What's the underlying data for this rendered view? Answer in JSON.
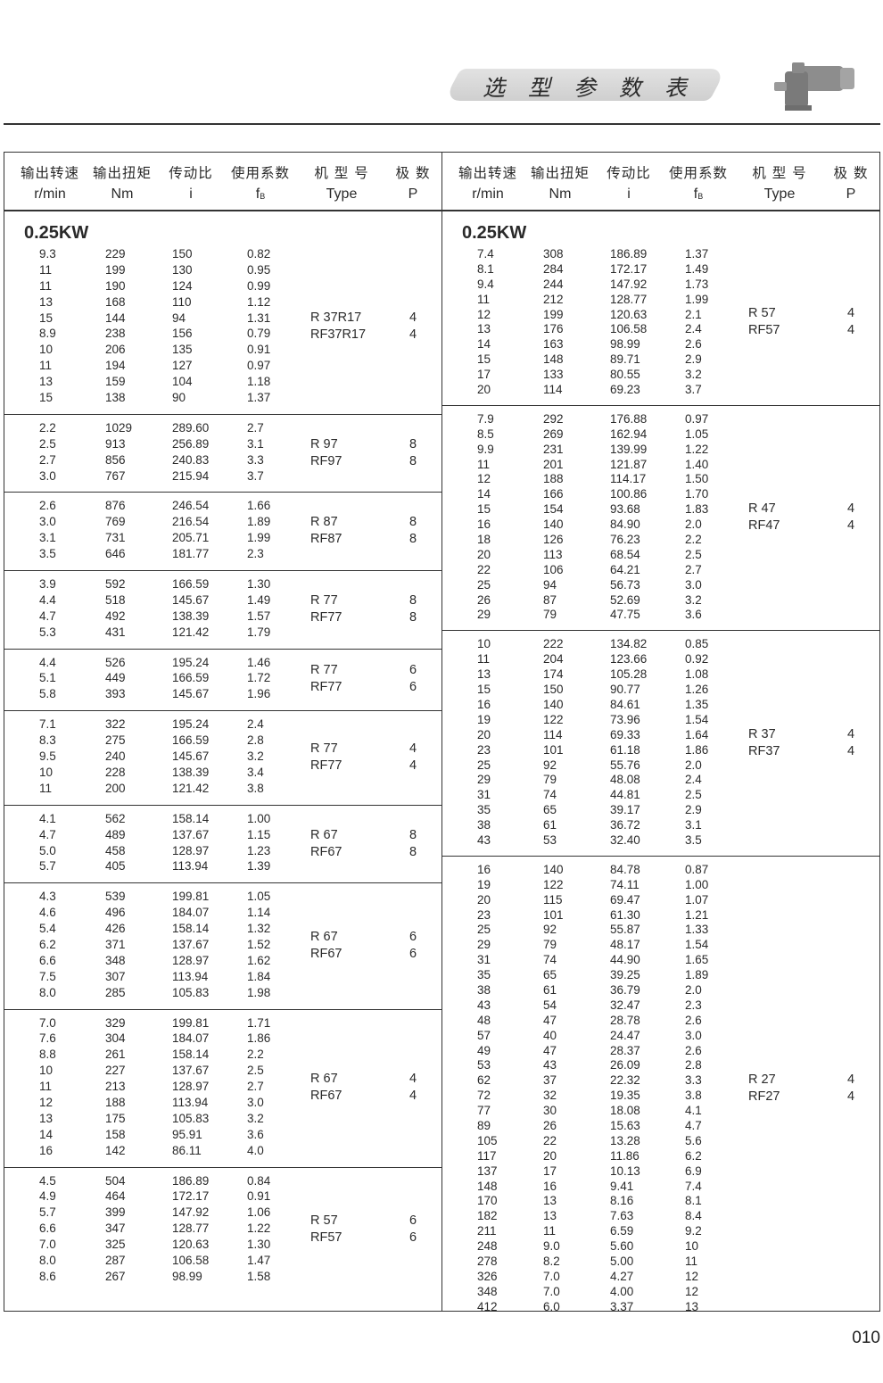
{
  "header": {
    "title": "选 型 参 数 表",
    "page_number": "010"
  },
  "columns": {
    "zh": [
      "输出转速",
      "输出扭矩",
      "传动比",
      "使用系数",
      "机 型 号",
      "极  数"
    ],
    "en": [
      "r/min",
      "Nm",
      "i",
      "f",
      "Type",
      "P"
    ],
    "fb_sub": "B"
  },
  "left": {
    "power": "0.25KW",
    "groups": [
      {
        "types": [
          "R  37R17",
          "RF37R17"
        ],
        "poles": [
          "4",
          "4"
        ],
        "rows": [
          [
            "9.3",
            "229",
            "150",
            "0.82"
          ],
          [
            "11",
            "199",
            "130",
            "0.95"
          ],
          [
            "11",
            "190",
            "124",
            "0.99"
          ],
          [
            "13",
            "168",
            "110",
            "1.12"
          ],
          [
            "15",
            "144",
            "94",
            "1.31"
          ],
          [
            "8.9",
            "238",
            "156",
            "0.79"
          ],
          [
            "10",
            "206",
            "135",
            "0.91"
          ],
          [
            "11",
            "194",
            "127",
            "0.97"
          ],
          [
            "13",
            "159",
            "104",
            "1.18"
          ],
          [
            "15",
            "138",
            "90",
            "1.37"
          ]
        ]
      },
      {
        "types": [
          "R  97",
          "RF97"
        ],
        "poles": [
          "8",
          "8"
        ],
        "rows": [
          [
            "2.2",
            "1029",
            "289.60",
            "2.7"
          ],
          [
            "2.5",
            "913",
            "256.89",
            "3.1"
          ],
          [
            "2.7",
            "856",
            "240.83",
            "3.3"
          ],
          [
            "3.0",
            "767",
            "215.94",
            "3.7"
          ]
        ]
      },
      {
        "types": [
          "R  87",
          "RF87"
        ],
        "poles": [
          "8",
          "8"
        ],
        "rows": [
          [
            "2.6",
            "876",
            "246.54",
            "1.66"
          ],
          [
            "3.0",
            "769",
            "216.54",
            "1.89"
          ],
          [
            "3.1",
            "731",
            "205.71",
            "1.99"
          ],
          [
            "3.5",
            "646",
            "181.77",
            "2.3"
          ]
        ]
      },
      {
        "types": [
          "R  77",
          "RF77"
        ],
        "poles": [
          "8",
          "8"
        ],
        "rows": [
          [
            "3.9",
            "592",
            "166.59",
            "1.30"
          ],
          [
            "4.4",
            "518",
            "145.67",
            "1.49"
          ],
          [
            "4.7",
            "492",
            "138.39",
            "1.57"
          ],
          [
            "5.3",
            "431",
            "121.42",
            "1.79"
          ]
        ]
      },
      {
        "types": [
          "R  77",
          "RF77"
        ],
        "poles": [
          "6",
          "6"
        ],
        "rows": [
          [
            "4.4",
            "526",
            "195.24",
            "1.46"
          ],
          [
            "5.1",
            "449",
            "166.59",
            "1.72"
          ],
          [
            "5.8",
            "393",
            "145.67",
            "1.96"
          ]
        ]
      },
      {
        "types": [
          "R  77",
          "RF77"
        ],
        "poles": [
          "4",
          "4"
        ],
        "rows": [
          [
            "7.1",
            "322",
            "195.24",
            "2.4"
          ],
          [
            "8.3",
            "275",
            "166.59",
            "2.8"
          ],
          [
            "9.5",
            "240",
            "145.67",
            "3.2"
          ],
          [
            "10",
            "228",
            "138.39",
            "3.4"
          ],
          [
            "11",
            "200",
            "121.42",
            "3.8"
          ]
        ]
      },
      {
        "types": [
          "R  67",
          "RF67"
        ],
        "poles": [
          "8",
          "8"
        ],
        "rows": [
          [
            "4.1",
            "562",
            "158.14",
            "1.00"
          ],
          [
            "4.7",
            "489",
            "137.67",
            "1.15"
          ],
          [
            "5.0",
            "458",
            "128.97",
            "1.23"
          ],
          [
            "5.7",
            "405",
            "113.94",
            "1.39"
          ]
        ]
      },
      {
        "types": [
          "R  67",
          "RF67"
        ],
        "poles": [
          "6",
          "6"
        ],
        "rows": [
          [
            "4.3",
            "539",
            "199.81",
            "1.05"
          ],
          [
            "4.6",
            "496",
            "184.07",
            "1.14"
          ],
          [
            "5.4",
            "426",
            "158.14",
            "1.32"
          ],
          [
            "6.2",
            "371",
            "137.67",
            "1.52"
          ],
          [
            "6.6",
            "348",
            "128.97",
            "1.62"
          ],
          [
            "7.5",
            "307",
            "113.94",
            "1.84"
          ],
          [
            "8.0",
            "285",
            "105.83",
            "1.98"
          ]
        ]
      },
      {
        "types": [
          "R  67",
          "RF67"
        ],
        "poles": [
          "4",
          "4"
        ],
        "rows": [
          [
            "7.0",
            "329",
            "199.81",
            "1.71"
          ],
          [
            "7.6",
            "304",
            "184.07",
            "1.86"
          ],
          [
            "8.8",
            "261",
            "158.14",
            "2.2"
          ],
          [
            "10",
            "227",
            "137.67",
            "2.5"
          ],
          [
            "11",
            "213",
            "128.97",
            "2.7"
          ],
          [
            "12",
            "188",
            "113.94",
            "3.0"
          ],
          [
            "13",
            "175",
            "105.83",
            "3.2"
          ],
          [
            "14",
            "158",
            "95.91",
            "3.6"
          ],
          [
            "16",
            "142",
            "86.11",
            "4.0"
          ]
        ]
      },
      {
        "types": [
          "R  57",
          "RF57"
        ],
        "poles": [
          "6",
          "6"
        ],
        "rows": [
          [
            "4.5",
            "504",
            "186.89",
            "0.84"
          ],
          [
            "4.9",
            "464",
            "172.17",
            "0.91"
          ],
          [
            "5.7",
            "399",
            "147.92",
            "1.06"
          ],
          [
            "6.6",
            "347",
            "128.77",
            "1.22"
          ],
          [
            "7.0",
            "325",
            "120.63",
            "1.30"
          ],
          [
            "8.0",
            "287",
            "106.58",
            "1.47"
          ],
          [
            "8.6",
            "267",
            "98.99",
            "1.58"
          ]
        ]
      }
    ]
  },
  "right": {
    "power": "0.25KW",
    "groups": [
      {
        "types": [
          "R  57",
          "RF57"
        ],
        "poles": [
          "4",
          "4"
        ],
        "rows": [
          [
            "7.4",
            "308",
            "186.89",
            "1.37"
          ],
          [
            "8.1",
            "284",
            "172.17",
            "1.49"
          ],
          [
            "9.4",
            "244",
            "147.92",
            "1.73"
          ],
          [
            "11",
            "212",
            "128.77",
            "1.99"
          ],
          [
            "12",
            "199",
            "120.63",
            "2.1"
          ],
          [
            "13",
            "176",
            "106.58",
            "2.4"
          ],
          [
            "14",
            "163",
            "98.99",
            "2.6"
          ],
          [
            "15",
            "148",
            "89.71",
            "2.9"
          ],
          [
            "17",
            "133",
            "80.55",
            "3.2"
          ],
          [
            "20",
            "114",
            "69.23",
            "3.7"
          ]
        ]
      },
      {
        "types": [
          "R  47",
          "RF47"
        ],
        "poles": [
          "4",
          "4"
        ],
        "rows": [
          [
            "7.9",
            "292",
            "176.88",
            "0.97"
          ],
          [
            "8.5",
            "269",
            "162.94",
            "1.05"
          ],
          [
            "9.9",
            "231",
            "139.99",
            "1.22"
          ],
          [
            "11",
            "201",
            "121.87",
            "1.40"
          ],
          [
            "12",
            "188",
            "114.17",
            "1.50"
          ],
          [
            "14",
            "166",
            "100.86",
            "1.70"
          ],
          [
            "15",
            "154",
            "93.68",
            "1.83"
          ],
          [
            "16",
            "140",
            "84.90",
            "2.0"
          ],
          [
            "18",
            "126",
            "76.23",
            "2.2"
          ],
          [
            "20",
            "113",
            "68.54",
            "2.5"
          ],
          [
            "22",
            "106",
            "64.21",
            "2.7"
          ],
          [
            "25",
            "94",
            "56.73",
            "3.0"
          ],
          [
            "26",
            "87",
            "52.69",
            "3.2"
          ],
          [
            "29",
            "79",
            "47.75",
            "3.6"
          ]
        ]
      },
      {
        "types": [
          "R  37",
          "RF37"
        ],
        "poles": [
          "4",
          "4"
        ],
        "rows": [
          [
            "10",
            "222",
            "134.82",
            "0.85"
          ],
          [
            "11",
            "204",
            "123.66",
            "0.92"
          ],
          [
            "13",
            "174",
            "105.28",
            "1.08"
          ],
          [
            "15",
            "150",
            "90.77",
            "1.26"
          ],
          [
            "16",
            "140",
            "84.61",
            "1.35"
          ],
          [
            "19",
            "122",
            "73.96",
            "1.54"
          ],
          [
            "20",
            "114",
            "69.33",
            "1.64"
          ],
          [
            "23",
            "101",
            "61.18",
            "1.86"
          ],
          [
            "25",
            "92",
            "55.76",
            "2.0"
          ],
          [
            "29",
            "79",
            "48.08",
            "2.4"
          ],
          [
            "31",
            "74",
            "44.81",
            "2.5"
          ],
          [
            "35",
            "65",
            "39.17",
            "2.9"
          ],
          [
            "38",
            "61",
            "36.72",
            "3.1"
          ],
          [
            "43",
            "53",
            "32.40",
            "3.5"
          ]
        ]
      },
      {
        "types": [
          "R  27",
          "RF27"
        ],
        "poles": [
          "4",
          "4"
        ],
        "rows": [
          [
            "16",
            "140",
            "84.78",
            "0.87"
          ],
          [
            "19",
            "122",
            "74.11",
            "1.00"
          ],
          [
            "20",
            "115",
            "69.47",
            "1.07"
          ],
          [
            "23",
            "101",
            "61.30",
            "1.21"
          ],
          [
            "25",
            "92",
            "55.87",
            "1.33"
          ],
          [
            "29",
            "79",
            "48.17",
            "1.54"
          ],
          [
            "31",
            "74",
            "44.90",
            "1.65"
          ],
          [
            "35",
            "65",
            "39.25",
            "1.89"
          ],
          [
            "38",
            "61",
            "36.79",
            "2.0"
          ],
          [
            "43",
            "54",
            "32.47",
            "2.3"
          ],
          [
            "48",
            "47",
            "28.78",
            "2.6"
          ],
          [
            "57",
            "40",
            "24.47",
            "3.0"
          ],
          [
            "49",
            "47",
            "28.37",
            "2.6"
          ],
          [
            "53",
            "43",
            "26.09",
            "2.8"
          ],
          [
            "62",
            "37",
            "22.32",
            "3.3"
          ],
          [
            "72",
            "32",
            "19.35",
            "3.8"
          ],
          [
            "77",
            "30",
            "18.08",
            "4.1"
          ],
          [
            "89",
            "26",
            "15.63",
            "4.7"
          ],
          [
            "105",
            "22",
            "13.28",
            "5.6"
          ],
          [
            "117",
            "20",
            "11.86",
            "6.2"
          ],
          [
            "137",
            "17",
            "10.13",
            "6.9"
          ],
          [
            "148",
            "16",
            "9.41",
            "7.4"
          ],
          [
            "170",
            "13",
            "8.16",
            "8.1"
          ],
          [
            "182",
            "13",
            "7.63",
            "8.4"
          ],
          [
            "211",
            "11",
            "6.59",
            "9.2"
          ],
          [
            "248",
            "9.0",
            "5.60",
            "10"
          ],
          [
            "278",
            "8.2",
            "5.00",
            "11"
          ],
          [
            "326",
            "7.0",
            "4.27",
            "12"
          ],
          [
            "348",
            "7.0",
            "4.00",
            "12"
          ],
          [
            "412",
            "6.0",
            "3.37",
            "13"
          ]
        ]
      }
    ]
  }
}
